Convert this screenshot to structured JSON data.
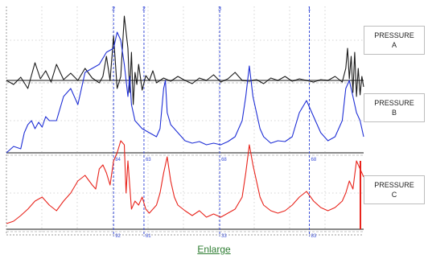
{
  "chart_data": {
    "type": "line",
    "x_range": [
      0,
      1000
    ],
    "series": [
      {
        "name": "PRESSURE A",
        "label_lines": [
          "PRESSURE",
          "A"
        ],
        "color": "#1a1a1a",
        "baseline": 100,
        "x": [
          0,
          20,
          40,
          60,
          80,
          95,
          110,
          125,
          140,
          160,
          180,
          200,
          220,
          240,
          260,
          270,
          280,
          290,
          300,
          310,
          320,
          330,
          340,
          345,
          350,
          355,
          360,
          365,
          370,
          380,
          390,
          400,
          410,
          420,
          440,
          460,
          480,
          500,
          520,
          540,
          560,
          580,
          600,
          620,
          640,
          660,
          680,
          700,
          720,
          740,
          760,
          780,
          800,
          820,
          840,
          860,
          880,
          900,
          920,
          940,
          950,
          955,
          960,
          965,
          970,
          975,
          980,
          985,
          990,
          995,
          1000
        ],
        "y": [
          100,
          105,
          96,
          110,
          78,
          98,
          88,
          102,
          80,
          99,
          91,
          100,
          85,
          97,
          103,
          95,
          70,
          100,
          45,
          110,
          95,
          20,
          60,
          115,
          65,
          130,
          90,
          105,
          80,
          112,
          94,
          100,
          88,
          103,
          97,
          101,
          95,
          100,
          104,
          97,
          100,
          93,
          102,
          98,
          90,
          100,
          101,
          99,
          104,
          97,
          100,
          95,
          101,
          98,
          100,
          102,
          99,
          100,
          95,
          102,
          85,
          60,
          98,
          70,
          115,
          65,
          120,
          85,
          118,
          95,
          108
        ]
      },
      {
        "name": "PRESSURE B",
        "label_lines": [
          "PRESSURE",
          "B"
        ],
        "color": "#1f2fd6",
        "baseline": 190,
        "x": [
          0,
          20,
          40,
          50,
          60,
          70,
          80,
          90,
          100,
          110,
          120,
          140,
          160,
          180,
          200,
          220,
          240,
          260,
          280,
          300,
          310,
          320,
          330,
          340,
          345,
          350,
          360,
          380,
          400,
          420,
          430,
          440,
          445,
          450,
          460,
          470,
          480,
          500,
          520,
          540,
          560,
          580,
          600,
          620,
          640,
          660,
          670,
          680,
          690,
          700,
          710,
          720,
          740,
          760,
          780,
          800,
          820,
          840,
          860,
          880,
          900,
          920,
          940,
          950,
          960,
          970,
          980,
          990,
          1000
        ],
        "y": [
          190,
          182,
          185,
          165,
          155,
          150,
          160,
          152,
          158,
          145,
          150,
          150,
          120,
          110,
          130,
          90,
          85,
          80,
          65,
          60,
          40,
          50,
          80,
          120,
          95,
          130,
          150,
          160,
          165,
          170,
          160,
          110,
          100,
          140,
          155,
          160,
          165,
          175,
          178,
          176,
          180,
          178,
          180,
          176,
          170,
          150,
          120,
          82,
          120,
          140,
          160,
          170,
          178,
          175,
          176,
          170,
          140,
          125,
          145,
          165,
          175,
          170,
          150,
          110,
          100,
          120,
          140,
          150,
          170
        ]
      },
      {
        "name": "PRESSURE C",
        "label_lines": [
          "PRESSURE",
          "C"
        ],
        "color": "#e8241c",
        "baseline": 285,
        "x": [
          0,
          20,
          40,
          60,
          80,
          100,
          120,
          140,
          160,
          180,
          200,
          220,
          240,
          250,
          260,
          270,
          280,
          290,
          300,
          310,
          320,
          330,
          335,
          340,
          350,
          360,
          370,
          380,
          390,
          400,
          420,
          430,
          440,
          450,
          460,
          470,
          480,
          500,
          520,
          540,
          560,
          580,
          600,
          620,
          640,
          660,
          670,
          680,
          690,
          700,
          710,
          720,
          740,
          760,
          780,
          800,
          820,
          840,
          860,
          880,
          900,
          920,
          940,
          950,
          960,
          970,
          980,
          990,
          1000
        ],
        "y": [
          278,
          275,
          268,
          260,
          250,
          245,
          255,
          262,
          250,
          240,
          225,
          218,
          230,
          235,
          210,
          205,
          215,
          230,
          200,
          190,
          175,
          180,
          240,
          200,
          260,
          250,
          255,
          245,
          260,
          265,
          255,
          240,
          215,
          195,
          225,
          245,
          255,
          262,
          268,
          262,
          270,
          266,
          270,
          265,
          260,
          245,
          215,
          180,
          205,
          225,
          245,
          255,
          262,
          265,
          262,
          255,
          245,
          238,
          250,
          258,
          262,
          258,
          250,
          240,
          225,
          235,
          200,
          210,
          220
        ]
      }
    ],
    "markers": [
      {
        "x": 300,
        "tag": "2",
        "labels": [
          "",
          "84",
          "92"
        ]
      },
      {
        "x": 385,
        "tag": "2",
        "labels": [
          "",
          "63",
          "81"
        ]
      },
      {
        "x": 597,
        "tag": "3",
        "labels": [
          "",
          "68",
          "33"
        ]
      },
      {
        "x": 848,
        "tag": "1",
        "labels": [
          "",
          "68",
          "83"
        ]
      }
    ],
    "grid": true
  },
  "link": {
    "label": "Enlarge"
  }
}
